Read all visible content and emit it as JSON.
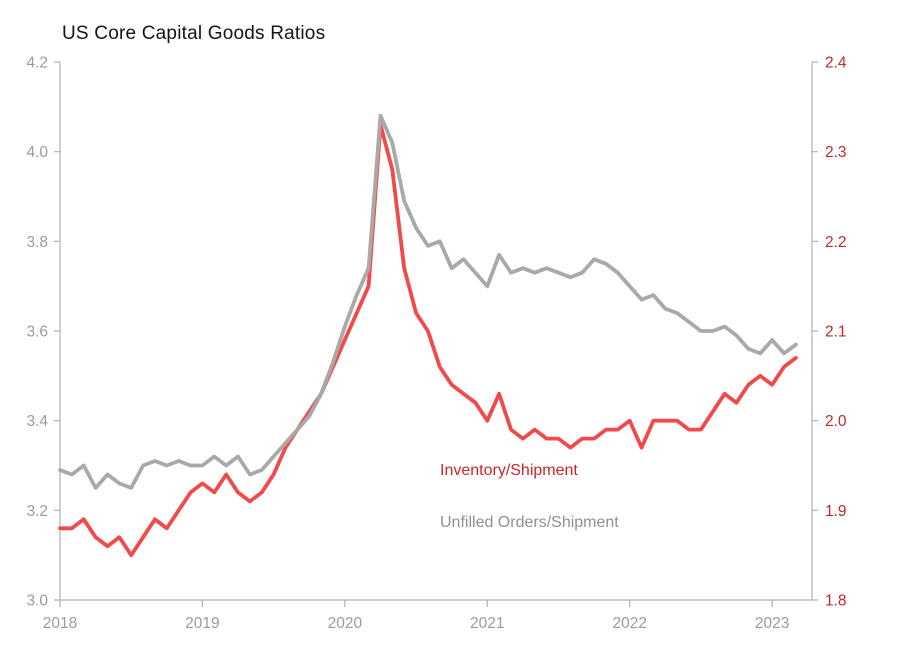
{
  "page": {
    "background": "#ffffff"
  },
  "chart_data": {
    "type": "line",
    "title": "US Core Capital Goods Ratios",
    "frequency": "monthly",
    "start_month": "2018-01",
    "grid": "off",
    "legend": "in-plot text labels",
    "axis_line_color": "#b0b0b0",
    "x_axis": {
      "tick_labels": [
        "2018",
        "2019",
        "2020",
        "2021",
        "2022",
        "2023"
      ],
      "range": [
        2018,
        2023.28
      ],
      "text_color": "#9b9b9b"
    },
    "left_axis": {
      "tick_labels": [
        "3.0",
        "3.2",
        "3.4",
        "3.6",
        "3.8",
        "4.0",
        "4.2"
      ],
      "range": [
        3.0,
        4.2
      ],
      "text_color": "#9b9b9b"
    },
    "right_axis": {
      "tick_labels": [
        "1.8",
        "1.9",
        "2.0",
        "2.1",
        "2.2",
        "2.3",
        "2.4"
      ],
      "range": [
        1.8,
        2.4
      ],
      "text_color": "#c22828"
    },
    "series": [
      {
        "name": "Inventory/Shipment",
        "axis": "right",
        "color": "#f24a4a",
        "label_color": "#c92727",
        "values": [
          1.88,
          1.88,
          1.89,
          1.87,
          1.86,
          1.87,
          1.85,
          1.87,
          1.89,
          1.88,
          1.9,
          1.92,
          1.93,
          1.92,
          1.94,
          1.92,
          1.91,
          1.92,
          1.94,
          1.97,
          1.99,
          2.01,
          2.03,
          2.06,
          2.09,
          2.12,
          2.15,
          2.33,
          2.28,
          2.17,
          2.12,
          2.1,
          2.06,
          2.04,
          2.03,
          2.02,
          2.0,
          2.03,
          1.99,
          1.98,
          1.99,
          1.98,
          1.98,
          1.97,
          1.98,
          1.98,
          1.99,
          1.99,
          2.0,
          1.97,
          2.0,
          2.0,
          2.0,
          1.99,
          1.99,
          2.01,
          2.03,
          2.02,
          2.04,
          2.05,
          2.04,
          2.06,
          2.07
        ]
      },
      {
        "name": "Unfilled Orders/Shipment",
        "axis": "left",
        "color": "#a9a9a9",
        "label_color": "#909090",
        "values": [
          3.29,
          3.28,
          3.3,
          3.25,
          3.28,
          3.26,
          3.25,
          3.3,
          3.31,
          3.3,
          3.31,
          3.3,
          3.3,
          3.32,
          3.3,
          3.32,
          3.28,
          3.29,
          3.32,
          3.35,
          3.38,
          3.41,
          3.46,
          3.53,
          3.61,
          3.68,
          3.74,
          4.08,
          4.02,
          3.89,
          3.83,
          3.79,
          3.8,
          3.74,
          3.76,
          3.73,
          3.7,
          3.77,
          3.73,
          3.74,
          3.73,
          3.74,
          3.73,
          3.72,
          3.73,
          3.76,
          3.75,
          3.73,
          3.7,
          3.67,
          3.68,
          3.65,
          3.64,
          3.62,
          3.6,
          3.6,
          3.61,
          3.59,
          3.56,
          3.55,
          3.58,
          3.55,
          3.57
        ]
      }
    ]
  }
}
